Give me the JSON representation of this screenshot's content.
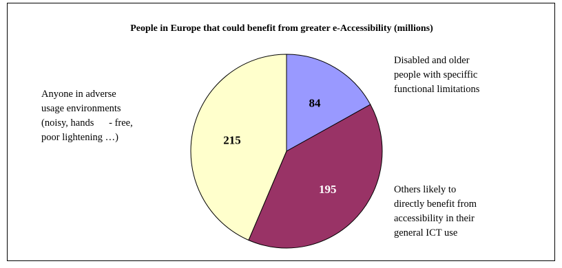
{
  "chart_data": {
    "type": "pie",
    "title": "People in Europe that could benefit from greater e-Accessibility (millions)",
    "slices": [
      {
        "label": "Disabled and older\npeople with speciffic\nfunctional limitations",
        "value": 84,
        "color": "#9999ff"
      },
      {
        "label": "Others likely to\ndirectly benefit from\naccessibility in their\ngeneral ICT use",
        "value": 195,
        "color": "#993366"
      },
      {
        "label": "Anyone in adverse\nusage environments\n(noisy, hands      - free,\npoor lightening …)",
        "value": 215,
        "color": "#ffffcc"
      }
    ],
    "value_label_colors": [
      "#000000",
      "#ffffff",
      "#000000"
    ],
    "start_angle_deg": 90,
    "direction": "clockwise"
  }
}
